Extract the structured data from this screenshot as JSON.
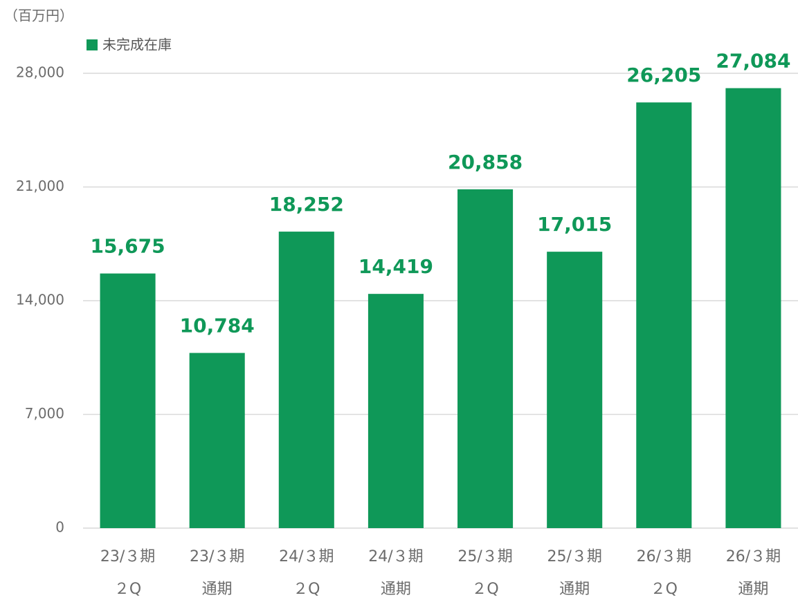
{
  "chart_data": {
    "type": "bar",
    "unit_label": "（百万円）",
    "categories": [
      [
        "23/３期",
        "２Q"
      ],
      [
        "23/３期",
        "通期"
      ],
      [
        "24/３期",
        "２Q"
      ],
      [
        "24/３期",
        "通期"
      ],
      [
        "25/３期",
        "２Q"
      ],
      [
        "25/３期",
        "通期"
      ],
      [
        "26/３期",
        "２Q"
      ],
      [
        "26/３期",
        "通期"
      ]
    ],
    "series": [
      {
        "name": "未完成在庫",
        "color": "#0f9858",
        "values": [
          15675,
          10784,
          18252,
          14419,
          20858,
          17015,
          26205,
          27084
        ],
        "value_labels": [
          "15,675",
          "10,784",
          "18,252",
          "14,419",
          "20,858",
          "17,015",
          "26,205",
          "27,084"
        ]
      }
    ],
    "ylim": [
      0,
      28000
    ],
    "yticks": [
      0,
      {
        "value": 7000,
        "label": "7,000"
      },
      {
        "value": 14000,
        "label": "14,000"
      },
      {
        "value": 21000,
        "label": "21,000"
      },
      {
        "value": 28000,
        "label": "28,000"
      }
    ],
    "grid": true,
    "legend": "top-left"
  }
}
